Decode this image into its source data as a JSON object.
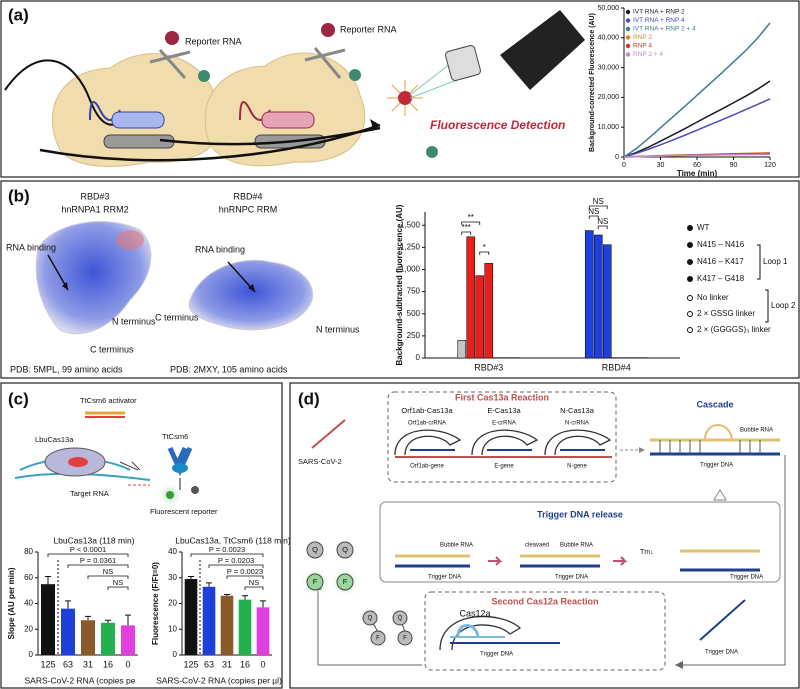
{
  "panels": {
    "a": {
      "label": "(a)",
      "reporter_1": "Reporter RNA",
      "reporter_2": "Reporter RNA",
      "detection": "Fluorescence Detection"
    },
    "b": {
      "label": "(b)",
      "rbd3": "RBD#3",
      "rbd3_domain": "hnRNPA1 RRM2",
      "rbd3_rna": "RNA binding",
      "rbd3_n": "N terminus",
      "rbd3_c": "C terminus",
      "rbd3_pdb": "PDB: 5MPL, 99 amino acids",
      "rbd4": "RBD#4",
      "rbd4_domain": "hnRNPC RRM",
      "rbd4_rna": "RNA binding",
      "rbd4_c": "C terminus",
      "rbd4_n": "N terminus",
      "rbd4_pdb": "PDB: 2MXY, 105 amino acids"
    },
    "c": {
      "label": "(c)",
      "activator": "TtCsm6 activator",
      "cas13": "LbuCas13a",
      "csm6": "TtCsm6",
      "target": "Target RNA",
      "reporter": "Fluorescent reporter"
    },
    "d": {
      "label": "(d)",
      "first": "First Cas13a Reaction",
      "orf_cas": "Orf1ab-Cas13a",
      "e_cas": "E-Cas13a",
      "n_cas": "N-Cas13a",
      "orf_cr": "Orf1ab-crRNA",
      "e_cr": "E-crRNA",
      "n_cr": "N-crRNA",
      "orf_gene": "Orf1ab-gene",
      "e_gene": "E-gene",
      "n_gene": "N-gene",
      "sars": "SARS-CoV-2",
      "cascade": "Cascade",
      "bubble_1": "Bubble RNA",
      "trigger_1": "Trigger DNA",
      "release": "Trigger DNA release",
      "bubble_2": "Bubble RNA",
      "trigger_2": "Trigger DNA",
      "cleaved": "cleavaed",
      "bubble_3": "Bubble RNA",
      "trigger_3": "Trigger DNA",
      "tm": "Tm↓",
      "trigger_4": "Trigger DNA",
      "second": "Second Cas12a Reaction",
      "cas12": "Cas12a",
      "trigger_5": "Trigger DNA",
      "trigger_6": "Trigger DNA",
      "q1": "Q",
      "q2": "Q",
      "f1": "F",
      "f2": "F",
      "q3": "Q",
      "q4": "Q",
      "f3": "F",
      "f4": "F"
    }
  },
  "chart_data": [
    {
      "type": "line",
      "x_label": "Time (min)",
      "y_label": "Background-corrected Fluorescence (AU)",
      "x": [
        0,
        10,
        20,
        30,
        40,
        50,
        60,
        70,
        80,
        90,
        100,
        110,
        120
      ],
      "xlim": [
        0,
        120
      ],
      "xticks": [
        0,
        30,
        60,
        90,
        120
      ],
      "ylim": [
        0,
        50000
      ],
      "yticks": [
        0,
        {
          "value": 10000,
          "label": "10,000"
        },
        {
          "value": 20000,
          "label": "20,000"
        },
        {
          "value": 30000,
          "label": "30,000"
        },
        {
          "value": 40000,
          "label": "40,000"
        },
        {
          "value": 50000,
          "label": "50,000"
        }
      ],
      "legend": "upper left",
      "series": [
        {
          "name": "IVT RNA + RNP 2",
          "color": "#1a1a2e",
          "values": [
            0,
            1500,
            3300,
            5300,
            7400,
            9500,
            11700,
            13900,
            16000,
            18200,
            20400,
            22800,
            25500
          ]
        },
        {
          "name": "IVT RNA + RNP 4",
          "color": "#4b4bb8",
          "values": [
            0,
            1200,
            2600,
            4100,
            5700,
            7300,
            9000,
            10700,
            12400,
            14100,
            15900,
            17700,
            19500
          ]
        },
        {
          "name": "IVT RNA + RNP 2 + 4",
          "color": "#3b7d8c",
          "values": [
            0,
            2800,
            6200,
            9800,
            13400,
            17000,
            20700,
            24400,
            28100,
            31900,
            35700,
            40000,
            45000
          ]
        },
        {
          "name": "RNP 2",
          "color": "#d4842a",
          "values": [
            0,
            150,
            300,
            450,
            600,
            700,
            800,
            900,
            1000,
            1100,
            1200,
            1300,
            1400
          ]
        },
        {
          "name": "RNP 4",
          "color": "#c0392b",
          "values": [
            0,
            120,
            250,
            380,
            500,
            600,
            700,
            800,
            900,
            1000,
            1050,
            1100,
            1200
          ]
        },
        {
          "name": "RNP 2 + 4",
          "color": "#c08ad0",
          "values": [
            0,
            100,
            200,
            300,
            400,
            500,
            600,
            650,
            700,
            750,
            800,
            850,
            900
          ]
        }
      ]
    },
    {
      "type": "bar",
      "y_label": "Background-subtracted fluorescence (AU)",
      "categories": [
        "RBD#3",
        "RBD#4"
      ],
      "ylim": [
        0,
        1650
      ],
      "yticks": [
        0,
        250,
        500,
        750,
        {
          "value": 1000,
          "label": "1,000"
        },
        {
          "value": 1250,
          "label": "1,250"
        },
        {
          "value": 1500,
          "label": "1,500"
        }
      ],
      "series": [
        {
          "name": "WT",
          "colors": [
            "#c4c4c4",
            "#1f3fe0"
          ],
          "values": [
            200,
            1440
          ]
        },
        {
          "name": "N415 – N416",
          "colors": [
            "#e8201b",
            "#1f3fe0"
          ],
          "values": [
            1370,
            1390
          ]
        },
        {
          "name": "N416 – K417",
          "colors": [
            "#e8201b",
            "#1f3fe0"
          ],
          "values": [
            930,
            1280
          ]
        },
        {
          "name": "K417 – G418",
          "colors": [
            "#e8201b",
            "#ffffff"
          ],
          "values": [
            1070,
            4
          ]
        },
        {
          "name": "No linker",
          "colors": [
            "#ffffff",
            "#ffffff"
          ],
          "values": [
            4,
            4
          ]
        },
        {
          "name": "2 × GSSG linker",
          "colors": [
            "#ffffff",
            "#ffffff"
          ],
          "values": [
            4,
            4
          ]
        },
        {
          "name": "2 × (GGGGS)₃ linker",
          "colors": [
            "#ffffff",
            "#ffffff"
          ],
          "values": [
            4,
            4
          ]
        }
      ],
      "legend_groups": [
        "Loop 1",
        "Loop 2"
      ],
      "annotations": [
        "**",
        "***",
        "*",
        "NS",
        "NS",
        "NS"
      ]
    },
    {
      "type": "bar",
      "title": "LbuCas13a (118 min)",
      "y_label": "Slope (AU per min)",
      "x_label": "SARS-CoV-2 RNA (copies pe",
      "categories": [
        "125",
        "63",
        "31",
        "16",
        "0"
      ],
      "values": [
        55,
        36,
        27,
        25,
        23
      ],
      "errors": [
        6,
        6,
        3,
        2,
        8
      ],
      "colors": [
        "#111111",
        "#1e40d8",
        "#8b5a2b",
        "#22b14c",
        "#e040e0"
      ],
      "ylim": [
        0,
        80
      ],
      "yticks": [
        0,
        20,
        40,
        60,
        80
      ],
      "annotations": [
        "P < 0.0001",
        "P = 0.0361",
        "NS",
        "NS"
      ]
    },
    {
      "type": "bar",
      "title": "LbuCas13a, TtCsm6 (118 min)",
      "y_label": "Fluorescence (F/Ft=0)",
      "x_label": "SARS-CoV-2 RNA (copies per µl)",
      "categories": [
        "125",
        "63",
        "31",
        "16",
        "0"
      ],
      "values": [
        29.5,
        26.5,
        23,
        21.5,
        18.5
      ],
      "errors": [
        1,
        1.5,
        0.5,
        1.5,
        2.5
      ],
      "colors": [
        "#111111",
        "#1e40d8",
        "#8b5a2b",
        "#22b14c",
        "#e040e0"
      ],
      "ylim": [
        0,
        40
      ],
      "yticks": [
        0,
        10,
        20,
        30,
        40
      ],
      "annotations": [
        "P = 0.0023",
        "P = 0.0203",
        "P = 0.0023",
        "NS"
      ]
    }
  ]
}
